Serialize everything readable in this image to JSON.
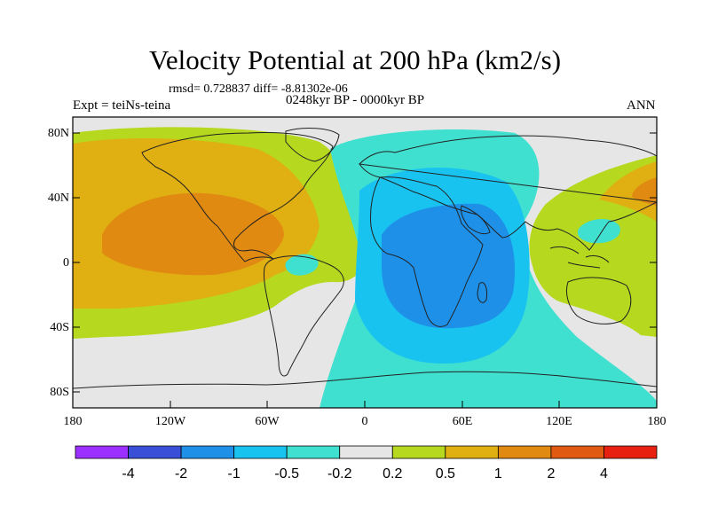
{
  "header": {
    "title": "Velocity Potential at 200 hPa (km2/s)",
    "rmsd": "rmsd= 0.728837 diff= -8.81302e-06",
    "period": "0248kyr BP - 0000kyr BP",
    "expt": "Expt = teiNs-teina",
    "season": "ANN"
  },
  "map": {
    "lat_labels": [
      "80N",
      "40N",
      "0",
      "40S",
      "80S"
    ],
    "lon_labels": [
      "180",
      "120W",
      "60W",
      "0",
      "60E",
      "120E",
      "180"
    ],
    "background_color": "#e6e6e6"
  },
  "colorbar": {
    "boxes": [
      {
        "color": "#9b30ff"
      },
      {
        "color": "#3a4fd8"
      },
      {
        "color": "#1e90e8"
      },
      {
        "color": "#19c3f0"
      },
      {
        "color": "#40e0d0"
      },
      {
        "color": "#e6e6e6"
      },
      {
        "color": "#b6d81e"
      },
      {
        "color": "#e0b012"
      },
      {
        "color": "#e08a12"
      },
      {
        "color": "#e05a12"
      },
      {
        "color": "#e82010"
      }
    ],
    "labels": [
      "-4",
      "-2",
      "-1",
      "-0.5",
      "-0.2",
      "0.2",
      "0.5",
      "1",
      "2",
      "4"
    ]
  }
}
